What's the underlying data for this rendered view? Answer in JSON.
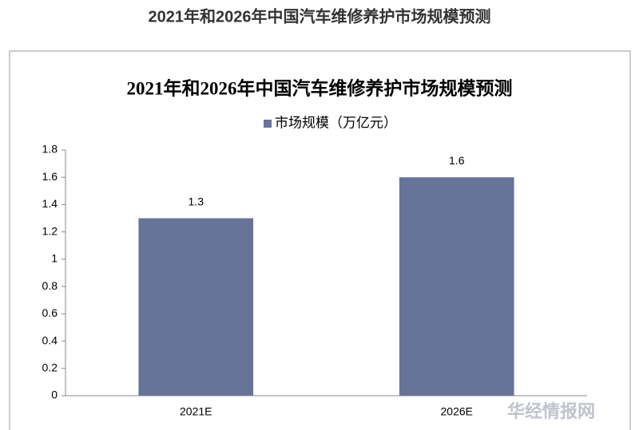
{
  "page_title": "2021年和2026年中国汽车维修养护市场规模预测",
  "watermark": "华经情报网",
  "chart_data": {
    "type": "bar",
    "title": "2021年和2026年中国汽车维修养护市场规模预测",
    "categories": [
      "2021E",
      "2026E"
    ],
    "series": [
      {
        "name": "市场规模（万亿元）",
        "color": "#68739a",
        "values": [
          1.3,
          1.6
        ]
      }
    ],
    "ylim": [
      0,
      1.8
    ],
    "yticks": [
      0,
      0.2,
      0.4,
      0.6,
      0.8,
      1,
      1.2,
      1.4,
      1.6,
      1.8
    ],
    "grid": false,
    "legend": "top"
  }
}
